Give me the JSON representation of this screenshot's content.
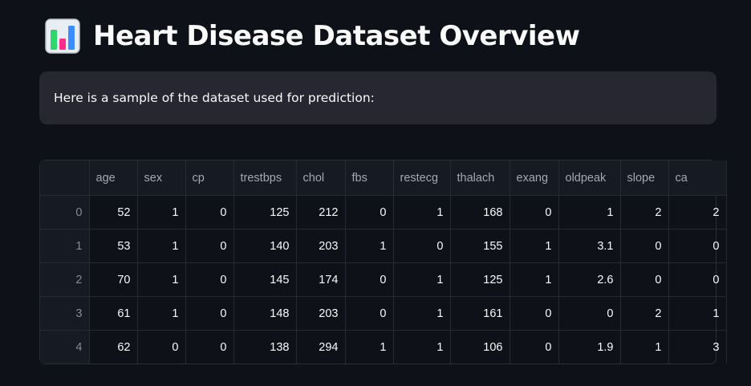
{
  "header": {
    "icon": "bar-chart-icon",
    "title": "Heart Disease Dataset Overview"
  },
  "info": {
    "text": "Here is a sample of the dataset used for prediction:"
  },
  "colors": {
    "background": "#0e1117",
    "info_box": "#262730",
    "table_header": "#161a22",
    "grid_line": "#262a33"
  },
  "table": {
    "columns": [
      "",
      "age",
      "sex",
      "cp",
      "trestbps",
      "chol",
      "fbs",
      "restecg",
      "thalach",
      "exang",
      "oldpeak",
      "slope",
      "ca"
    ],
    "rows": [
      [
        "0",
        "52",
        "1",
        "0",
        "125",
        "212",
        "0",
        "1",
        "168",
        "0",
        "1",
        "2",
        "2"
      ],
      [
        "1",
        "53",
        "1",
        "0",
        "140",
        "203",
        "1",
        "0",
        "155",
        "1",
        "3.1",
        "0",
        "0"
      ],
      [
        "2",
        "70",
        "1",
        "0",
        "145",
        "174",
        "0",
        "1",
        "125",
        "1",
        "2.6",
        "0",
        "0"
      ],
      [
        "3",
        "61",
        "1",
        "0",
        "148",
        "203",
        "0",
        "1",
        "161",
        "0",
        "0",
        "2",
        "1"
      ],
      [
        "4",
        "62",
        "0",
        "0",
        "138",
        "294",
        "1",
        "1",
        "106",
        "0",
        "1.9",
        "1",
        "3"
      ]
    ]
  }
}
